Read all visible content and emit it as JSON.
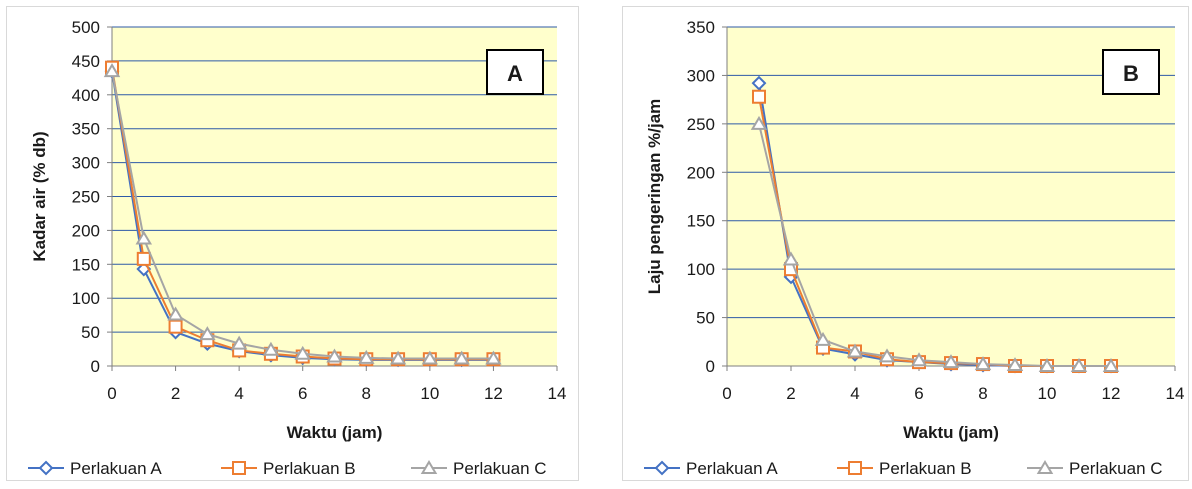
{
  "chart_data": [
    {
      "type": "line",
      "panel_label": "A",
      "xlabel": "Waktu (jam)",
      "ylabel": "Kadar air (% db)",
      "xlim": [
        0,
        14
      ],
      "ylim": [
        0,
        500
      ],
      "x_ticks": [
        0,
        2,
        4,
        6,
        8,
        10,
        12,
        14
      ],
      "y_ticks": [
        0,
        50,
        100,
        150,
        200,
        250,
        300,
        350,
        400,
        450,
        500
      ],
      "grid": "horizontal",
      "plot_background": "#FFFFCC",
      "legend_position": "bottom",
      "series": [
        {
          "name": "Perlakuan A",
          "marker": "diamond",
          "color": "#4472C4",
          "x": [
            0,
            1,
            2,
            3,
            4,
            5,
            6,
            7,
            8,
            9,
            10,
            11,
            12
          ],
          "y": [
            435,
            143,
            50,
            33,
            22,
            16,
            12,
            10,
            9,
            9,
            9,
            9,
            9
          ]
        },
        {
          "name": "Perlakuan B",
          "marker": "square",
          "color": "#ED7D31",
          "x": [
            0,
            1,
            2,
            3,
            4,
            5,
            6,
            7,
            8,
            9,
            10,
            11,
            12
          ],
          "y": [
            440,
            158,
            58,
            38,
            23,
            18,
            14,
            11,
            10,
            10,
            10,
            10,
            10
          ]
        },
        {
          "name": "Perlakuan C",
          "marker": "triangle",
          "color": "#A5A5A5",
          "x": [
            0,
            1,
            2,
            3,
            4,
            5,
            6,
            7,
            8,
            9,
            10,
            11,
            12
          ],
          "y": [
            435,
            188,
            76,
            47,
            33,
            24,
            18,
            14,
            12,
            11,
            11,
            11,
            11
          ]
        }
      ]
    },
    {
      "type": "line",
      "panel_label": "B",
      "xlabel": "Waktu (jam)",
      "ylabel": "Laju pengeringan %/jam",
      "xlim": [
        0,
        14
      ],
      "ylim": [
        0,
        350
      ],
      "x_ticks": [
        0,
        2,
        4,
        6,
        8,
        10,
        12,
        14
      ],
      "y_ticks": [
        0,
        50,
        100,
        150,
        200,
        250,
        300,
        350
      ],
      "grid": "horizontal",
      "plot_background": "#FFFFCC",
      "legend_position": "bottom",
      "series": [
        {
          "name": "Perlakuan A",
          "marker": "diamond",
          "color": "#4472C4",
          "x": [
            1,
            2,
            3,
            4,
            5,
            6,
            7,
            8,
            9,
            10,
            11,
            12
          ],
          "y": [
            292,
            92,
            18,
            12,
            6,
            4,
            2,
            1,
            0,
            0,
            0,
            0
          ]
        },
        {
          "name": "Perlakuan B",
          "marker": "square",
          "color": "#ED7D31",
          "x": [
            1,
            2,
            3,
            4,
            5,
            6,
            7,
            8,
            9,
            10,
            11,
            12
          ],
          "y": [
            278,
            100,
            19,
            15,
            7,
            4,
            3,
            2,
            0,
            0,
            0,
            0
          ]
        },
        {
          "name": "Perlakuan C",
          "marker": "triangle",
          "color": "#A5A5A5",
          "x": [
            1,
            2,
            3,
            4,
            5,
            6,
            7,
            8,
            9,
            10,
            11,
            12
          ],
          "y": [
            250,
            110,
            27,
            15,
            10,
            6,
            4,
            2,
            1,
            0,
            0,
            0
          ]
        }
      ]
    }
  ]
}
